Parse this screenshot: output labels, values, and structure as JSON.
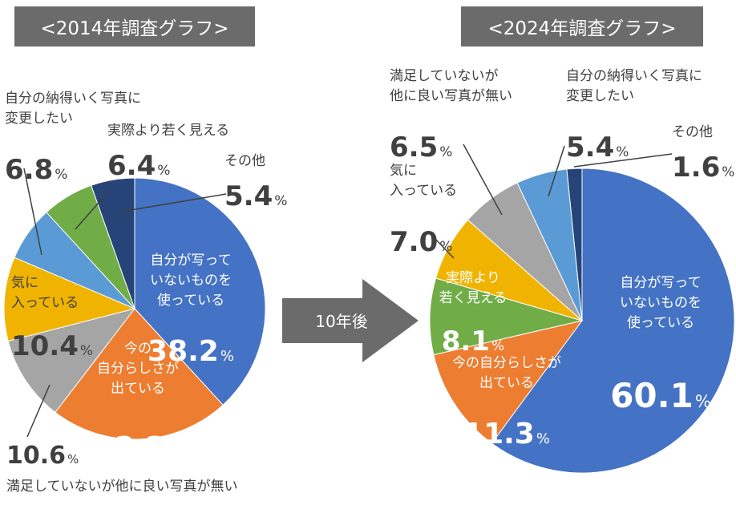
{
  "charts": {
    "left_title": "<2014年調査グラフ>",
    "right_title": "<2024年調査グラフ>",
    "arrow_label": "10年後",
    "percent_sign": "%"
  },
  "colors": {
    "blue": "#4472c4",
    "orange": "#ed7d31",
    "gray": "#a5a5a5",
    "yellow": "#f0b400",
    "lightblue": "#5b9bd5",
    "green": "#70ad47",
    "navy": "#264478",
    "title_bg": "#6b6b6b",
    "text": "#404040"
  },
  "chart_data": [
    {
      "type": "pie",
      "title": "<2014年調査グラフ>",
      "slices": [
        {
          "label": [
            "自分が写って",
            "いないものを",
            "使っている"
          ],
          "value": 38.2,
          "value_text": "38.2",
          "color": "blue"
        },
        {
          "label": [
            "今の",
            "自分らしさが",
            "出ている"
          ],
          "value": 22.2,
          "value_text": "22.2",
          "color": "orange"
        },
        {
          "label": [
            "満足していないが他に良い写真が無い"
          ],
          "value": 10.6,
          "value_text": "10.6",
          "color": "gray"
        },
        {
          "label": [
            "気に",
            "入っている"
          ],
          "value": 10.4,
          "value_text": "10.4",
          "color": "yellow"
        },
        {
          "label": [
            "自分の納得いく写真に",
            "変更したい"
          ],
          "value": 6.8,
          "value_text": "6.8",
          "color": "lightblue"
        },
        {
          "label": [
            "実際より若く見える"
          ],
          "value": 6.4,
          "value_text": "6.4",
          "color": "green"
        },
        {
          "label": [
            "その他"
          ],
          "value": 5.4,
          "value_text": "5.4",
          "color": "navy"
        }
      ]
    },
    {
      "type": "pie",
      "title": "<2024年調査グラフ>",
      "slices": [
        {
          "label": [
            "自分が写って",
            "いないものを",
            "使っている"
          ],
          "value": 60.1,
          "value_text": "60.1",
          "color": "blue"
        },
        {
          "label": [
            "今の自分らしさが",
            "出ている"
          ],
          "value": 11.3,
          "value_text": "11.3",
          "color": "orange"
        },
        {
          "label": [
            "実際より",
            "若く見える"
          ],
          "value": 8.1,
          "value_text": "8.1",
          "color": "green"
        },
        {
          "label": [
            "気に",
            "入っている"
          ],
          "value": 7.0,
          "value_text": "7.0",
          "color": "yellow"
        },
        {
          "label": [
            "満足していないが",
            "他に良い写真が無い"
          ],
          "value": 6.5,
          "value_text": "6.5",
          "color": "gray"
        },
        {
          "label": [
            "自分の納得いく写真に",
            "変更したい"
          ],
          "value": 5.4,
          "value_text": "5.4",
          "color": "lightblue"
        },
        {
          "label": [
            "その他"
          ],
          "value": 1.6,
          "value_text": "1.6",
          "color": "navy"
        }
      ]
    }
  ]
}
